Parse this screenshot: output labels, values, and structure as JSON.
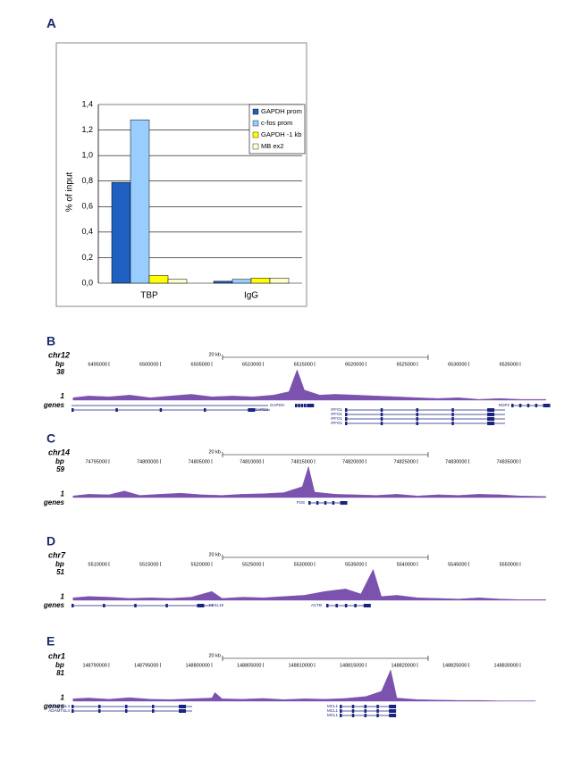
{
  "chart_data": [
    {
      "type": "bar",
      "panel": "A",
      "y_label": "% of input",
      "categories": [
        "TBP",
        "IgG"
      ],
      "series": [
        {
          "name": "GAPDH prom",
          "color": "#1f5fbf",
          "values": [
            0.79,
            0.015
          ]
        },
        {
          "name": "c-fos prom",
          "color": "#99ccff",
          "values": [
            1.28,
            0.03
          ]
        },
        {
          "name": "GAPDH -1 kb",
          "color": "#ffff00",
          "values": [
            0.06,
            0.04
          ]
        },
        {
          "name": "MB ex2",
          "color": "#ffffcc",
          "values": [
            0.03,
            0.04
          ]
        }
      ],
      "ylim": [
        0,
        1.4
      ],
      "yticks": [
        {
          "value": 0,
          "label": "0,0"
        },
        {
          "value": 0.2,
          "label": "0,2"
        },
        {
          "value": 0.4,
          "label": "0,4"
        },
        {
          "value": 0.6,
          "label": "0,6"
        },
        {
          "value": 0.8,
          "label": "0,8"
        },
        {
          "value": 1,
          "label": "1,0"
        },
        {
          "value": 1.2,
          "label": "1,2"
        },
        {
          "value": 1.4,
          "label": "1,4"
        }
      ],
      "grid": true,
      "legend": "top-right"
    },
    {
      "type": "area",
      "panel": "B",
      "chrom": "chr12",
      "y_label": "bp",
      "color": "#7b52ae",
      "scale_label": "20 kb",
      "track_label": "genes",
      "ylim": [
        0,
        38
      ],
      "yticks": [
        1,
        38
      ],
      "xlim": [
        6491350,
        6537870
      ],
      "xticks": [
        6495000,
        6500000,
        6505000,
        6510000,
        6515000,
        6520000,
        6525000,
        6530000,
        6535000
      ],
      "x": [
        6491500,
        6493000,
        6495000,
        6497000,
        6499000,
        6501000,
        6503000,
        6505000,
        6507000,
        6509000,
        6511000,
        6512500,
        6513300,
        6514000,
        6515500,
        6517000,
        6519000,
        6521000,
        6523000,
        6525000,
        6527000,
        6529000,
        6531000,
        6533000,
        6535000,
        6537500
      ],
      "values": [
        3,
        5,
        4,
        6,
        3,
        5,
        7,
        4,
        5,
        4,
        6,
        10,
        36,
        12,
        6,
        7,
        6,
        5,
        4,
        3,
        2,
        3,
        1,
        2,
        1,
        1
      ],
      "genes": [
        "GAPDH",
        "NCAPD2",
        "IFFO1",
        "IFFO1",
        "IFFO1",
        "IFFO1",
        "NOP2"
      ]
    },
    {
      "type": "area",
      "panel": "C",
      "chrom": "chr14",
      "y_label": "bp",
      "color": "#7b52ae",
      "scale_label": "20 kb",
      "track_label": "genes",
      "ylim": [
        0,
        59
      ],
      "yticks": [
        1,
        59
      ],
      "xlim": [
        74791350,
        74837870
      ],
      "xticks": [
        74795000,
        74800000,
        74805000,
        74810000,
        74815000,
        74820000,
        74825000,
        74830000,
        74835000
      ],
      "x": [
        74791500,
        74793000,
        74795000,
        74796500,
        74798000,
        74800000,
        74802000,
        74804000,
        74806000,
        74808000,
        74810000,
        74812000,
        74813800,
        74814400,
        74815000,
        74817000,
        74819000,
        74821000,
        74823000,
        74825000,
        74827000,
        74829000,
        74831000,
        74833000,
        74835000,
        74837500
      ],
      "values": [
        3,
        6,
        5,
        12,
        4,
        6,
        8,
        5,
        4,
        6,
        7,
        9,
        20,
        57,
        10,
        6,
        5,
        4,
        6,
        3,
        5,
        4,
        6,
        5,
        3,
        2
      ],
      "genes": [
        "FOS"
      ]
    },
    {
      "type": "area",
      "panel": "D",
      "chrom": "chr7",
      "y_label": "bp",
      "color": "#7b52ae",
      "scale_label": "20 kb",
      "track_label": "genes",
      "ylim": [
        0,
        51
      ],
      "yticks": [
        1,
        51
      ],
      "xlim": [
        5506350,
        5552870
      ],
      "xticks": [
        5510000,
        5515000,
        5520000,
        5525000,
        5530000,
        5535000,
        5540000,
        5545000,
        5550000
      ],
      "x": [
        5506500,
        5508000,
        5510000,
        5512000,
        5514000,
        5516000,
        5518000,
        5520000,
        5521000,
        5523000,
        5525000,
        5527000,
        5529000,
        5531000,
        5533000,
        5534500,
        5535700,
        5536500,
        5538000,
        5540000,
        5542000,
        5544000,
        5546000,
        5548000,
        5550000,
        5552500
      ],
      "values": [
        4,
        6,
        5,
        3,
        4,
        3,
        5,
        14,
        3,
        5,
        4,
        6,
        8,
        14,
        18,
        10,
        49,
        6,
        8,
        4,
        3,
        2,
        4,
        2,
        1,
        1
      ],
      "genes": [
        "FBXL18",
        "ACTB"
      ]
    },
    {
      "type": "area",
      "panel": "E",
      "chrom": "chr1",
      "y_label": "bp",
      "color": "#7b52ae",
      "scale_label": "20 kb",
      "track_label": "genes",
      "ylim": [
        0,
        81
      ],
      "yticks": [
        1,
        81
      ],
      "xlim": [
        148786350,
        148832870
      ],
      "xticks": [
        148790000,
        148795000,
        148800000,
        148805000,
        148810000,
        148815000,
        148820000,
        148825000,
        148830000
      ],
      "x": [
        148786500,
        148788000,
        148790000,
        148792000,
        148794000,
        148796000,
        148798000,
        148800000,
        148800300,
        148801000,
        148803000,
        148805000,
        148807000,
        148809000,
        148811000,
        148813000,
        148815000,
        148816500,
        148817400,
        148818000,
        148820000,
        148822000,
        148824000,
        148826000,
        148828000,
        148831500
      ],
      "values": [
        6,
        8,
        5,
        9,
        5,
        4,
        6,
        8,
        22,
        6,
        5,
        7,
        4,
        6,
        5,
        7,
        12,
        25,
        79,
        8,
        4,
        3,
        2,
        2,
        1,
        1
      ],
      "genes": [
        "ADAMTSL4",
        "ADAMTSL4",
        "MCL1",
        "MCL1",
        "MCL1"
      ]
    }
  ]
}
